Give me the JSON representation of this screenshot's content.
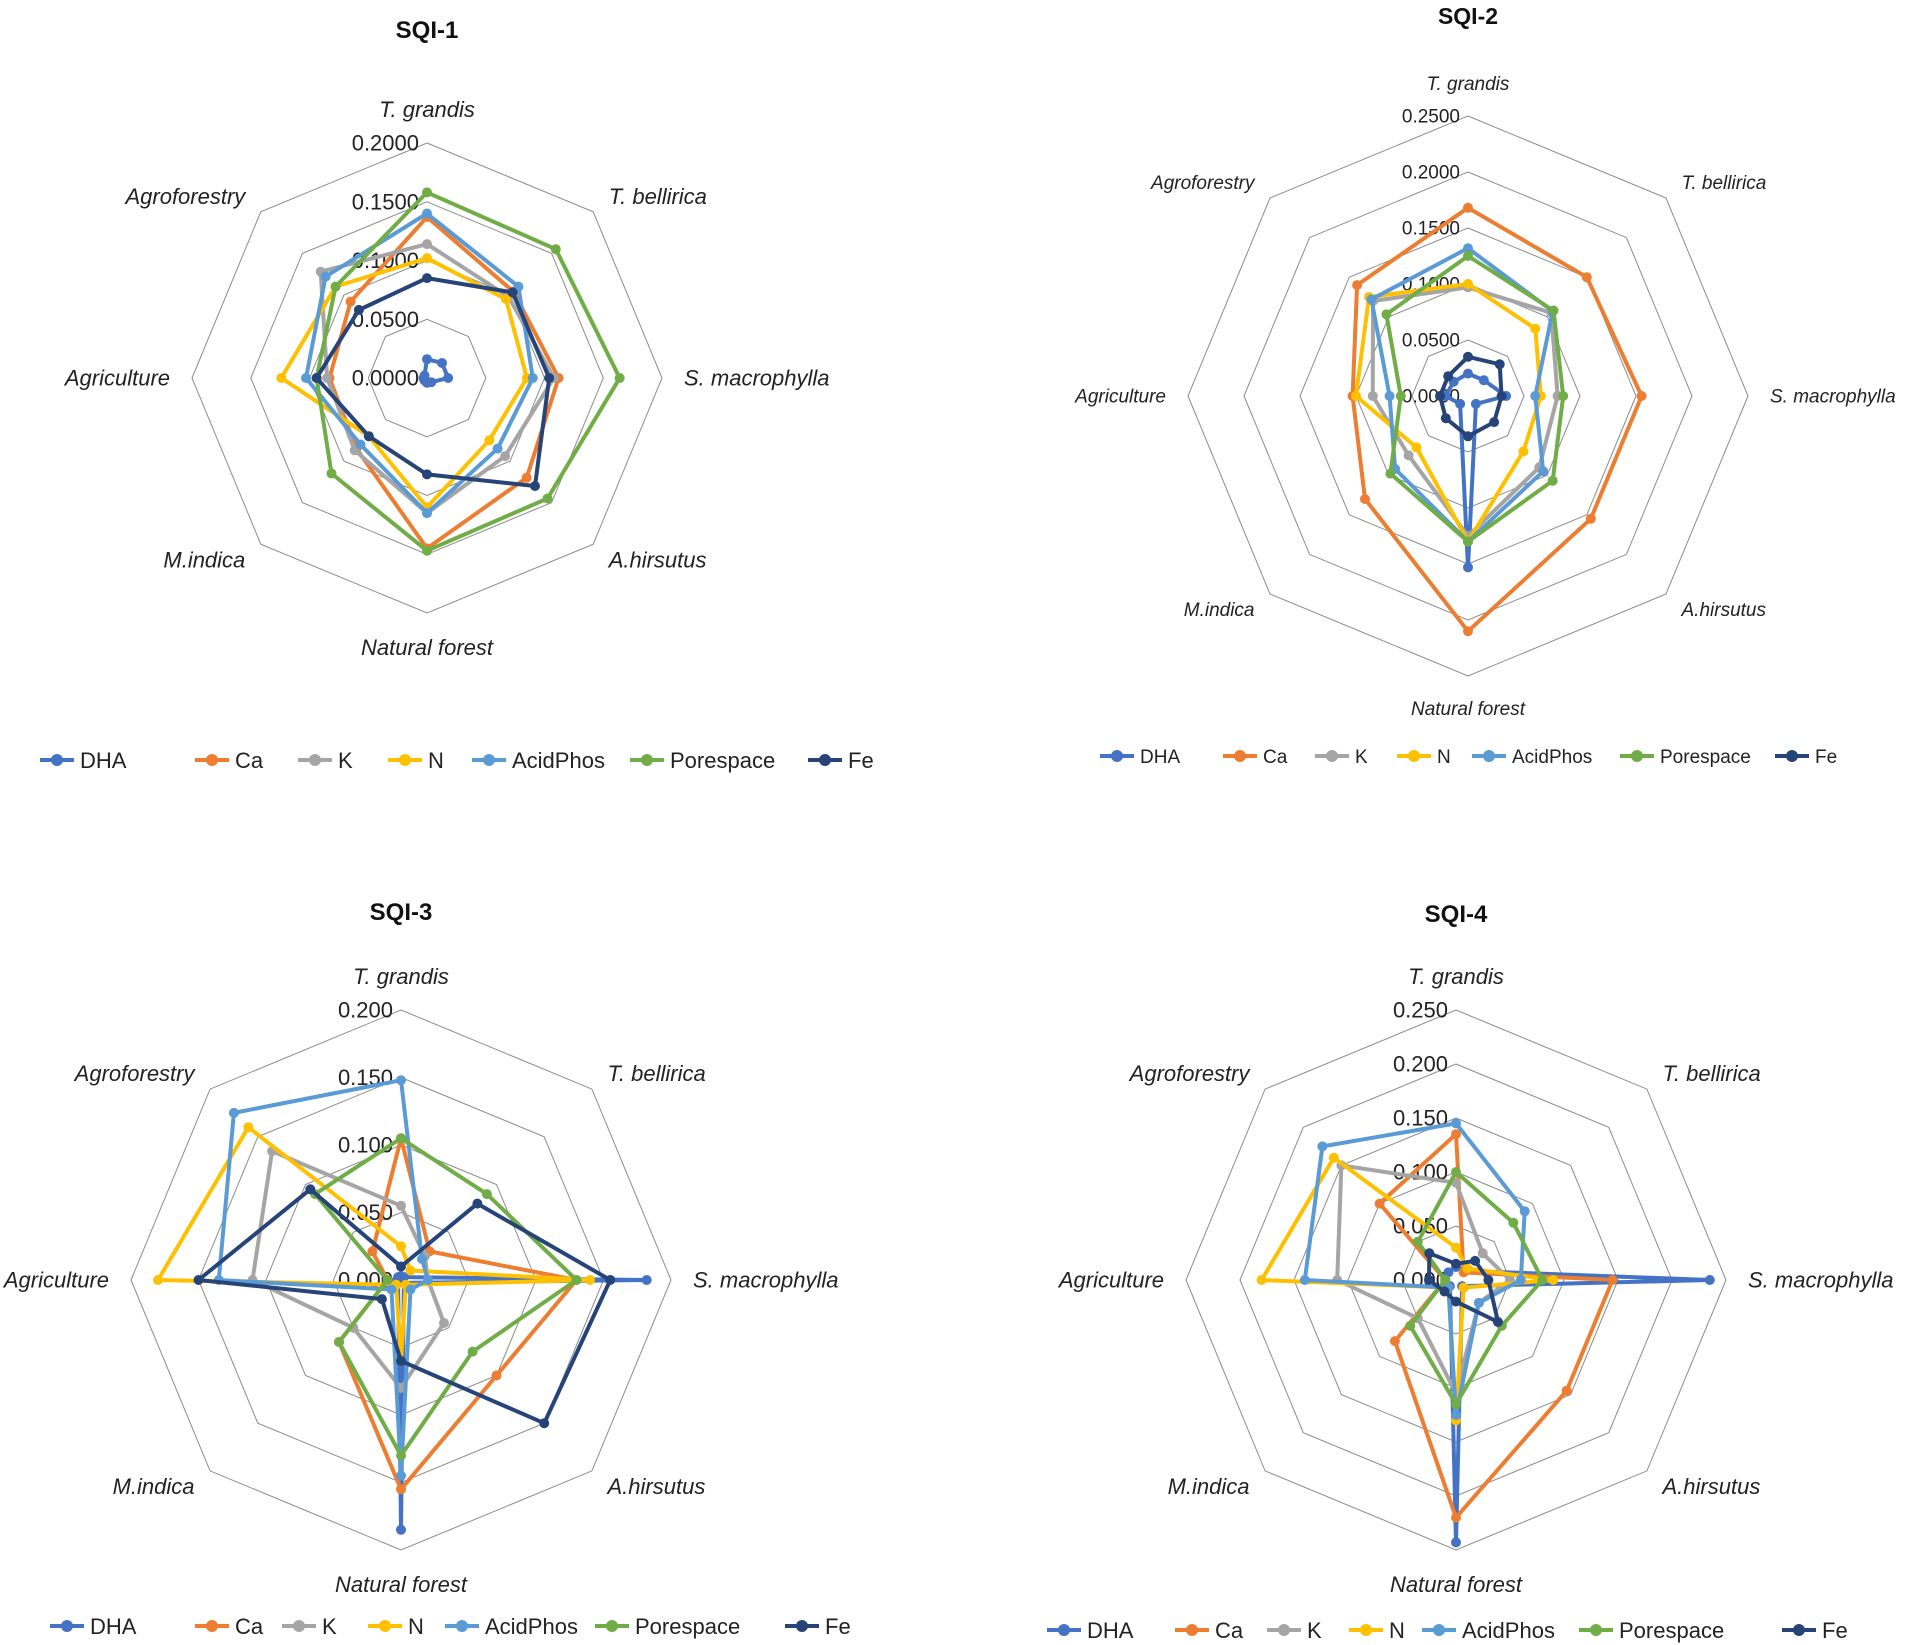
{
  "chart_data": [
    {
      "type": "radar",
      "title": "SQI-1",
      "categories": [
        "T. grandis",
        "T. bellirica",
        "S. macrophylla",
        "A.hirsutus",
        "Natural forest",
        "M.indica",
        "Agriculture",
        "Agroforestry"
      ],
      "ticks": [
        "0.0000",
        "0.0500",
        "0.1000",
        "0.1500",
        "0.2000"
      ],
      "tick_values": [
        0,
        0.05,
        0.1,
        0.15,
        0.2
      ],
      "rmax": 0.2,
      "series": [
        {
          "name": "DHA",
          "values": [
            0.016,
            0.018,
            0.018,
            0.005,
            0.004,
            0.003,
            0.003,
            0.003
          ]
        },
        {
          "name": "Ca",
          "values": [
            0.137,
            0.104,
            0.112,
            0.12,
            0.145,
            0.085,
            0.083,
            0.092
          ]
        },
        {
          "name": "K",
          "values": [
            0.114,
            0.098,
            0.108,
            0.094,
            0.115,
            0.087,
            0.085,
            0.128
          ]
        },
        {
          "name": "N",
          "values": [
            0.102,
            0.095,
            0.085,
            0.075,
            0.11,
            0.07,
            0.124,
            0.11
          ]
        },
        {
          "name": "AcidPhos",
          "values": [
            0.14,
            0.11,
            0.09,
            0.085,
            0.115,
            0.08,
            0.103,
            0.122
          ]
        },
        {
          "name": "Porespace",
          "values": [
            0.158,
            0.155,
            0.164,
            0.145,
            0.147,
            0.115,
            0.094,
            0.11
          ]
        },
        {
          "name": "Fe",
          "values": [
            0.085,
            0.103,
            0.104,
            0.13,
            0.082,
            0.07,
            0.094,
            0.082
          ]
        }
      ]
    },
    {
      "type": "radar",
      "title": "SQI-2",
      "categories": [
        "T. grandis",
        "T. bellirica",
        "S. macrophylla",
        "A.hirsutus",
        "Natural forest",
        "M.indica",
        "Agriculture",
        "Agroforestry"
      ],
      "ticks": [
        "0.0000",
        "0.0500",
        "0.1000",
        "0.1500",
        "0.2000",
        "0.2500"
      ],
      "tick_values": [
        0,
        0.05,
        0.1,
        0.15,
        0.2,
        0.25
      ],
      "rmax": 0.25,
      "series": [
        {
          "name": "DHA",
          "values": [
            0.02,
            0.02,
            0.034,
            0.01,
            0.153,
            0.01,
            0.02,
            0.018
          ]
        },
        {
          "name": "Ca",
          "values": [
            0.168,
            0.15,
            0.155,
            0.155,
            0.21,
            0.13,
            0.103,
            0.14
          ]
        },
        {
          "name": "K",
          "values": [
            0.097,
            0.105,
            0.08,
            0.09,
            0.125,
            0.075,
            0.085,
            0.12
          ]
        },
        {
          "name": "N",
          "values": [
            0.1,
            0.085,
            0.065,
            0.07,
            0.13,
            0.065,
            0.1,
            0.125
          ]
        },
        {
          "name": "AcidPhos",
          "values": [
            0.132,
            0.107,
            0.06,
            0.095,
            0.13,
            0.092,
            0.07,
            0.122
          ]
        },
        {
          "name": "Porespace",
          "values": [
            0.125,
            0.108,
            0.085,
            0.107,
            0.13,
            0.098,
            0.06,
            0.103
          ]
        },
        {
          "name": "Fe",
          "values": [
            0.035,
            0.04,
            0.03,
            0.033,
            0.036,
            0.028,
            0.025,
            0.025
          ]
        }
      ]
    },
    {
      "type": "radar",
      "title": "SQI-3",
      "categories": [
        "T. grandis",
        "T. bellirica",
        "S. macrophylla",
        "A.hirsutus",
        "Natural forest",
        "M.indica",
        "Agriculture",
        "Agroforestry"
      ],
      "ticks": [
        "0.000",
        "0.050",
        "0.100",
        "0.150",
        "0.200"
      ],
      "tick_values": [
        0,
        0.05,
        0.1,
        0.15,
        0.2
      ],
      "rmax": 0.2,
      "series": [
        {
          "name": "DHA",
          "values": [
            0.003,
            0.003,
            0.182,
            0.003,
            0.185,
            0.003,
            0.003,
            0.003
          ]
        },
        {
          "name": "Ca",
          "values": [
            0.105,
            0.03,
            0.13,
            0.1,
            0.155,
            0.065,
            0.01,
            0.03
          ]
        },
        {
          "name": "K",
          "values": [
            0.055,
            0.025,
            0.02,
            0.045,
            0.08,
            0.05,
            0.11,
            0.135
          ]
        },
        {
          "name": "N",
          "values": [
            0.025,
            0.01,
            0.14,
            0.005,
            0.06,
            0.005,
            0.18,
            0.16
          ]
        },
        {
          "name": "AcidPhos",
          "values": [
            0.148,
            0.022,
            0.02,
            0.01,
            0.145,
            0.01,
            0.135,
            0.175
          ]
        },
        {
          "name": "Porespace",
          "values": [
            0.105,
            0.09,
            0.13,
            0.075,
            0.13,
            0.065,
            0.01,
            0.09
          ]
        },
        {
          "name": "Fe",
          "values": [
            0.01,
            0.08,
            0.155,
            0.15,
            0.06,
            0.02,
            0.15,
            0.095
          ]
        }
      ]
    },
    {
      "type": "radar",
      "title": "SQI-4",
      "categories": [
        "T. grandis",
        "T. bellirica",
        "S. macrophylla",
        "A.hirsutus",
        "Natural forest",
        "M.indica",
        "Agriculture",
        "Agroforestry"
      ],
      "ticks": [
        "0.000",
        "0.050",
        "0.100",
        "0.150",
        "0.200",
        "0.250"
      ],
      "tick_values": [
        0,
        0.05,
        0.1,
        0.15,
        0.2,
        0.25
      ],
      "rmax": 0.25,
      "series": [
        {
          "name": "DHA",
          "values": [
            0.012,
            0.012,
            0.235,
            0.008,
            0.243,
            0.008,
            0.01,
            0.01
          ]
        },
        {
          "name": "Ca",
          "values": [
            0.135,
            0.01,
            0.145,
            0.145,
            0.22,
            0.08,
            0.01,
            0.1
          ]
        },
        {
          "name": "K",
          "values": [
            0.09,
            0.035,
            0.05,
            0.03,
            0.105,
            0.05,
            0.11,
            0.15
          ]
        },
        {
          "name": "N",
          "values": [
            0.03,
            0.015,
            0.09,
            0.01,
            0.13,
            0.01,
            0.18,
            0.16
          ]
        },
        {
          "name": "AcidPhos",
          "values": [
            0.145,
            0.09,
            0.06,
            0.03,
            0.125,
            0.01,
            0.14,
            0.175
          ]
        },
        {
          "name": "Porespace",
          "values": [
            0.1,
            0.075,
            0.08,
            0.06,
            0.115,
            0.06,
            0.01,
            0.05
          ]
        },
        {
          "name": "Fe",
          "values": [
            0.015,
            0.025,
            0.03,
            0.055,
            0.02,
            0.015,
            0.025,
            0.035
          ]
        }
      ]
    }
  ],
  "legend": [
    "DHA",
    "Ca",
    "K",
    "N",
    "AcidPhos",
    "Porespace",
    "Fe"
  ],
  "colors": {
    "DHA": "#4472c4",
    "Ca": "#ed7d31",
    "K": "#a5a5a5",
    "N": "#ffc000",
    "AcidPhos": "#5b9bd5",
    "Porespace": "#70ad47",
    "Fe": "#264478",
    "grid": "#8c8c8c"
  }
}
